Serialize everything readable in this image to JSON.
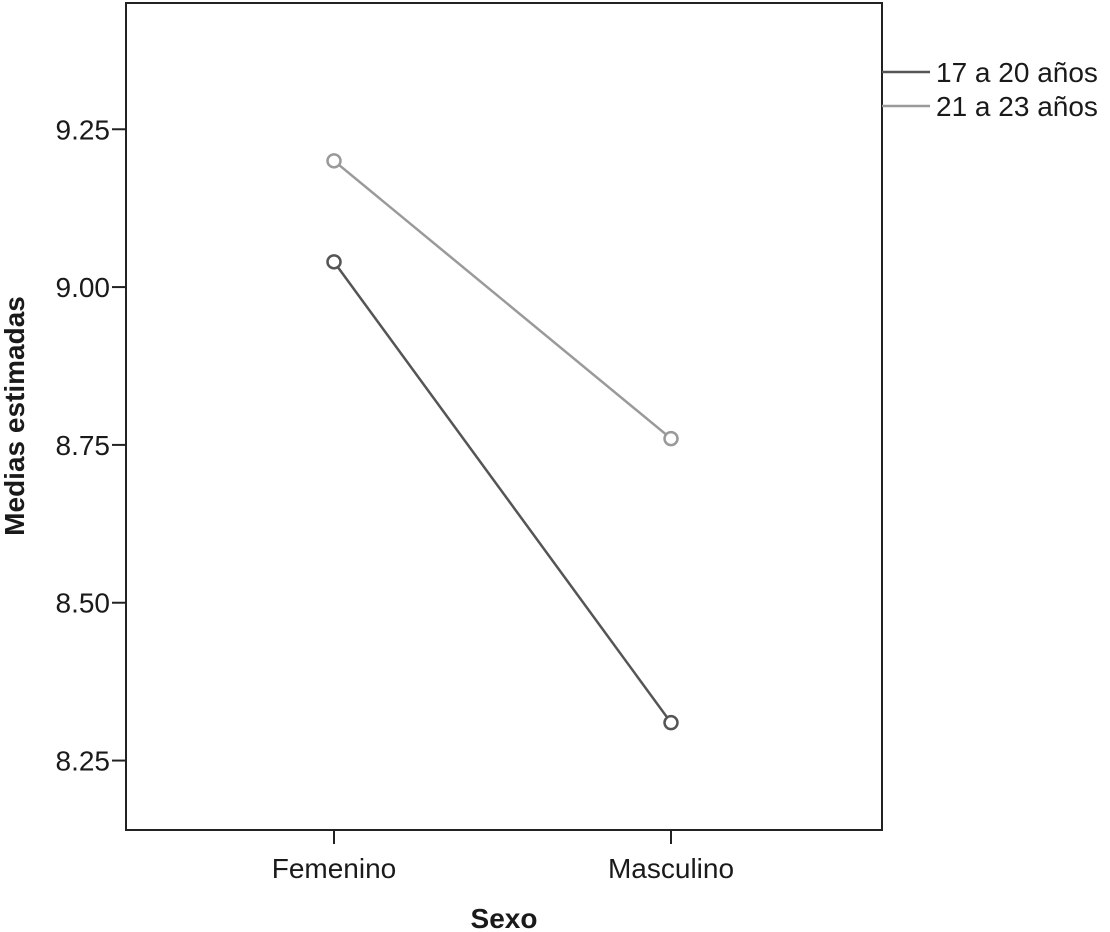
{
  "chart_data": {
    "type": "line",
    "title": "",
    "xlabel": "Sexo",
    "ylabel": "Medias estimadas",
    "categories": [
      "Femenino",
      "Masculino"
    ],
    "yticks": [
      "8.25",
      "8.50",
      "8.75",
      "9.00",
      "9.25"
    ],
    "ylim": [
      8.14,
      9.45
    ],
    "grid": false,
    "legend_position": "top-right, outside plot",
    "series": [
      {
        "name": "17 a 20 años",
        "values": [
          9.04,
          8.31
        ],
        "color": "#555555"
      },
      {
        "name": "21 a 23 años",
        "values": [
          9.2,
          8.76
        ],
        "color": "#9a9a9a"
      }
    ]
  }
}
